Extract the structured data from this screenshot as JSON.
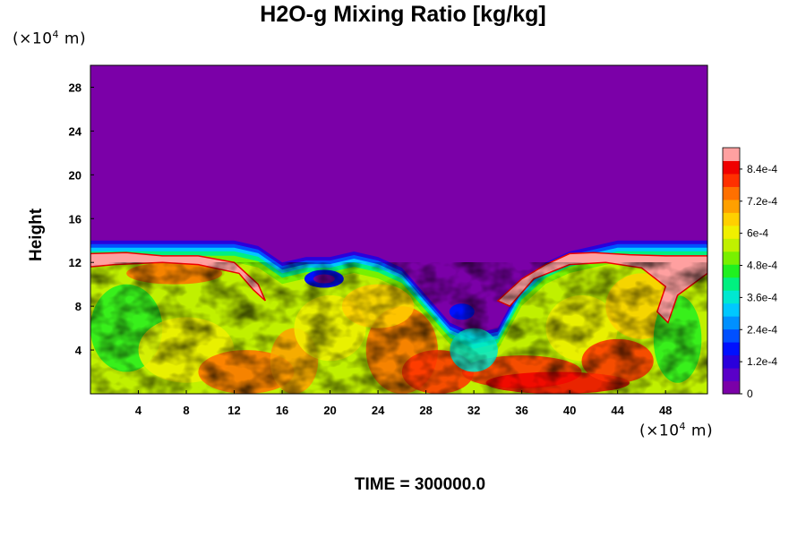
{
  "chart_data": {
    "type": "heatmap",
    "title": "H2O-g Mixing Ratio [kg/kg]",
    "ylabel": "Height",
    "x_unit": "(×10⁴ m)",
    "y_unit": "(×10⁴ m)",
    "x_ticks": [
      4,
      8,
      12,
      16,
      20,
      24,
      28,
      32,
      36,
      40,
      44,
      48
    ],
    "y_ticks": [
      4,
      8,
      12,
      16,
      20,
      24,
      28
    ],
    "xlim": [
      0,
      51.5
    ],
    "ylim": [
      0,
      30
    ],
    "colorbar": {
      "min": 0,
      "max": 0.00092,
      "tick_labels": [
        "0",
        "1.2e-4",
        "2.4e-4",
        "3.6e-4",
        "4.8e-4",
        "6e-4",
        "7.2e-4",
        "8.4e-4"
      ],
      "tick_values": [
        0,
        0.00012,
        0.00024,
        0.00036,
        0.00048,
        0.0006,
        0.00072,
        0.00084
      ],
      "colors": [
        "#7b00a8",
        "#5a00c8",
        "#2a00dc",
        "#0010ff",
        "#0050ff",
        "#0090ff",
        "#00c8ff",
        "#00e8d0",
        "#00f080",
        "#20f020",
        "#78f000",
        "#c0f000",
        "#f0f000",
        "#ffd000",
        "#ffa000",
        "#ff7000",
        "#ff3000",
        "#f00000",
        "#ffa0a0"
      ]
    },
    "moisture_top_height": {
      "x": [
        0,
        6,
        10,
        12,
        14,
        16,
        18,
        20,
        22,
        24,
        26,
        28,
        30,
        32,
        34,
        36,
        38,
        40,
        42,
        44,
        46,
        48,
        50,
        51.5
      ],
      "y": [
        14,
        14,
        14,
        14,
        13.5,
        12,
        12.5,
        12.5,
        13,
        12.5,
        11.5,
        9,
        6.5,
        5.5,
        6,
        10,
        12,
        13,
        13.5,
        14,
        14,
        14,
        14,
        14
      ]
    },
    "colorbar_title": "",
    "footer": "TIME = 300000.0"
  }
}
